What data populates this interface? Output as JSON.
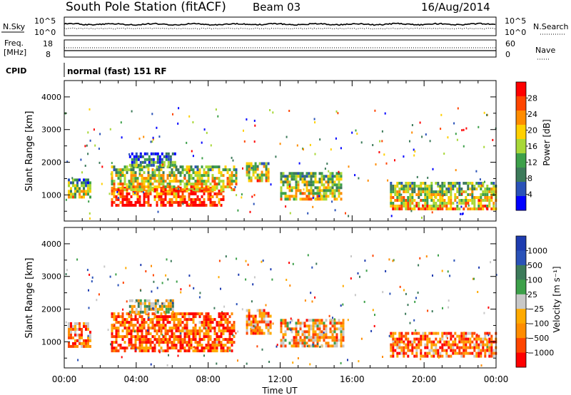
{
  "header": {
    "station_title": "South Pole Station (fitACF)",
    "beam": "Beam 03",
    "date": "16/Aug/2014"
  },
  "status_panel": {
    "nsky_label": "N.Sky",
    "nsearch_label": "N.Search",
    "nsky_ticks": [
      "10^5",
      "10^0"
    ],
    "nsearch_ticks": [
      "10^5",
      "10^0"
    ],
    "freq_label_1": "Freq.",
    "freq_label_2": "[MHz]",
    "freq_ticks": [
      "18",
      "8"
    ],
    "nave_label": "Nave",
    "nave_ticks": [
      "60",
      "0"
    ],
    "cpid_label": "CPID",
    "cpid_value": "normal (fast) 151 RF"
  },
  "chart_data": [
    {
      "type": "heatmap",
      "name": "power-panel",
      "ylabel": "Slant Range [km]",
      "y_ticks": [
        1000,
        2000,
        3000,
        4000
      ],
      "ylim": [
        200,
        4500
      ],
      "colorbar_label": "Power [dB]",
      "colorbar_ticks": [
        "28",
        "24",
        "20",
        "16",
        "12",
        "8",
        "4"
      ],
      "colors": [
        "#0000ff",
        "#2a52b8",
        "#3c7a5a",
        "#3da04a",
        "#a8d838",
        "#ffd000",
        "#ff8c00",
        "#ff4500",
        "#ff0000"
      ],
      "bands": [
        {
          "t0": 0.2,
          "t1": 1.5,
          "r0": 900,
          "r1": 1500,
          "level": 0.45
        },
        {
          "t0": 2.6,
          "t1": 8.9,
          "r0": 700,
          "r1": 1250,
          "level": 0.85
        },
        {
          "t0": 2.6,
          "t1": 9.6,
          "r0": 1200,
          "r1": 1900,
          "level": 0.55
        },
        {
          "t0": 3.6,
          "t1": 6.2,
          "r0": 1900,
          "r1": 2300,
          "level": 0.25
        },
        {
          "t0": 10.1,
          "t1": 11.3,
          "r0": 1400,
          "r1": 2000,
          "level": 0.55
        },
        {
          "t0": 12.0,
          "t1": 15.4,
          "r0": 900,
          "r1": 1700,
          "level": 0.5
        },
        {
          "t0": 18.1,
          "t1": 24.0,
          "r0": 600,
          "r1": 1400,
          "level": 0.55
        }
      ]
    },
    {
      "type": "heatmap",
      "name": "velocity-panel",
      "ylabel": "Slant Range [km]",
      "y_ticks": [
        1000,
        2000,
        3000,
        4000
      ],
      "ylim": [
        200,
        4500
      ],
      "colorbar_label": "Velocity [m s⁻¹]",
      "colorbar_ticks": [
        "1000",
        "500",
        "100",
        "25",
        "−25",
        "−100",
        "−500",
        "−1000"
      ],
      "colors": [
        "#ff0000",
        "#ff4500",
        "#ff8c00",
        "#ffaa00",
        "#c8c8c8",
        "#3da04a",
        "#3c7a5a",
        "#2a52b8",
        "#1e3cb0"
      ],
      "bands": [
        {
          "t0": 0.2,
          "t1": 1.5,
          "r0": 900,
          "r1": 1600,
          "level": 0.3
        },
        {
          "t0": 2.6,
          "t1": 9.4,
          "r0": 700,
          "r1": 1900,
          "level": 0.2
        },
        {
          "t0": 3.6,
          "t1": 6.0,
          "r0": 1900,
          "r1": 2300,
          "level": 0.5
        },
        {
          "t0": 10.1,
          "t1": 11.5,
          "r0": 1300,
          "r1": 2000,
          "level": 0.25
        },
        {
          "t0": 12.0,
          "t1": 15.5,
          "r0": 900,
          "r1": 1700,
          "level": 0.35
        },
        {
          "t0": 18.1,
          "t1": 24.0,
          "r0": 600,
          "r1": 1300,
          "level": 0.25
        }
      ]
    }
  ],
  "x_axis": {
    "label": "Time UT",
    "ticks": [
      "00:00",
      "04:00",
      "08:00",
      "12:00",
      "16:00",
      "20:00",
      "00:00"
    ],
    "xlim": [
      0,
      24
    ]
  }
}
